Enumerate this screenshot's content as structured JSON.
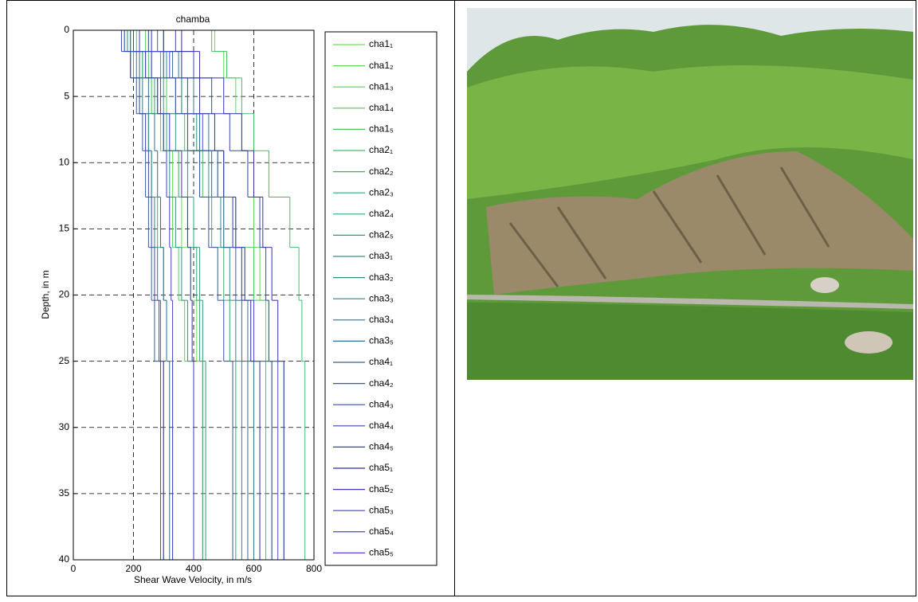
{
  "chart_data": {
    "type": "step-profile",
    "title": "chamba",
    "x_label": "Shear Wave Velocity, in m/s",
    "y_label": "Depth, in m",
    "xlim": [
      0,
      800
    ],
    "xticks": [
      0,
      200,
      400,
      600,
      800
    ],
    "ylim": [
      0,
      40
    ],
    "yticks": [
      0,
      5,
      10,
      15,
      20,
      25,
      30,
      35,
      40
    ],
    "y_reversed": true,
    "grid": true,
    "layer_depths": [
      0,
      1.6,
      3.6,
      6.3,
      9.1,
      12.6,
      16.4,
      20.4,
      25,
      40
    ],
    "series": [
      {
        "name": "cha1₁",
        "color": "#66e055",
        "values": [
          180,
          220,
          260,
          300,
          330,
          360,
          390,
          410,
          430
        ]
      },
      {
        "name": "cha1₂",
        "color": "#5ed95a",
        "values": [
          470,
          500,
          540,
          560,
          580,
          600,
          620,
          640,
          660
        ]
      },
      {
        "name": "cha1₃",
        "color": "#56d25e",
        "values": [
          200,
          230,
          260,
          290,
          310,
          330,
          350,
          370,
          400
        ]
      },
      {
        "name": "cha1₄",
        "color": "#4ecb62",
        "values": [
          240,
          300,
          360,
          420,
          480,
          540,
          600,
          650,
          700
        ]
      },
      {
        "name": "cha1₅",
        "color": "#47c466",
        "values": [
          210,
          250,
          310,
          370,
          430,
          500,
          560,
          600,
          640
        ]
      },
      {
        "name": "cha2₁",
        "color": "#40bc6a",
        "values": [
          460,
          510,
          560,
          600,
          650,
          720,
          750,
          760,
          770
        ]
      },
      {
        "name": "cha2₂",
        "color": "#3ab46e",
        "values": [
          170,
          200,
          220,
          250,
          260,
          280,
          300,
          310,
          330
        ]
      },
      {
        "name": "cha2₃",
        "color": "#35ac72",
        "values": [
          250,
          290,
          340,
          380,
          420,
          460,
          500,
          520,
          540
        ]
      },
      {
        "name": "cha2₄",
        "color": "#31a476",
        "values": [
          190,
          230,
          270,
          310,
          350,
          380,
          410,
          420,
          430
        ]
      },
      {
        "name": "cha2₅",
        "color": "#2e9c7a",
        "values": [
          220,
          260,
          300,
          340,
          380,
          400,
          420,
          430,
          440
        ]
      },
      {
        "name": "cha3₁",
        "color": "#2c947e",
        "values": [
          200,
          240,
          280,
          300,
          320,
          340,
          360,
          380,
          400
        ]
      },
      {
        "name": "cha3₂",
        "color": "#2b8c84",
        "values": [
          260,
          310,
          360,
          410,
          450,
          490,
          520,
          540,
          560
        ]
      },
      {
        "name": "cha3₃",
        "color": "#2b838a",
        "values": [
          180,
          210,
          230,
          250,
          260,
          270,
          280,
          290,
          300
        ]
      },
      {
        "name": "cha3₄",
        "color": "#2c7a90",
        "values": [
          300,
          350,
          400,
          450,
          500,
          530,
          560,
          580,
          600
        ]
      },
      {
        "name": "cha3₅",
        "color": "#2e7096",
        "values": [
          190,
          220,
          250,
          270,
          280,
          290,
          300,
          310,
          320
        ]
      },
      {
        "name": "cha4₁",
        "color": "#30669c",
        "values": [
          280,
          330,
          380,
          420,
          460,
          500,
          540,
          560,
          580
        ]
      },
      {
        "name": "cha4₂",
        "color": "#335ca2",
        "values": [
          170,
          190,
          210,
          230,
          240,
          250,
          260,
          270,
          290
        ]
      },
      {
        "name": "cha4₃",
        "color": "#3552a8",
        "values": [
          250,
          300,
          340,
          380,
          420,
          450,
          480,
          500,
          530
        ]
      },
      {
        "name": "cha4₄",
        "color": "#3748ae",
        "values": [
          340,
          400,
          460,
          520,
          580,
          620,
          640,
          650,
          660
        ]
      },
      {
        "name": "cha4₅",
        "color": "#3a3fb4",
        "values": [
          160,
          190,
          220,
          240,
          250,
          260,
          270,
          285,
          300
        ]
      },
      {
        "name": "cha5₁",
        "color": "#2b2f9c",
        "values": [
          300,
          360,
          420,
          470,
          500,
          540,
          570,
          590,
          620
        ]
      },
      {
        "name": "cha5₂",
        "color": "#3b38c4",
        "values": [
          200,
          240,
          280,
          320,
          360,
          380,
          390,
          395,
          400
        ]
      },
      {
        "name": "cha5₃",
        "color": "#4543cc",
        "values": [
          220,
          260,
          290,
          300,
          310,
          320,
          325,
          330,
          330
        ]
      },
      {
        "name": "cha5₄",
        "color": "#3030b0",
        "values": [
          360,
          420,
          500,
          560,
          600,
          630,
          660,
          680,
          700
        ]
      },
      {
        "name": "cha5₅",
        "color": "#4a4ae0",
        "values": [
          260,
          320,
          380,
          430,
          480,
          530,
          560,
          600,
          680
        ]
      }
    ]
  }
}
